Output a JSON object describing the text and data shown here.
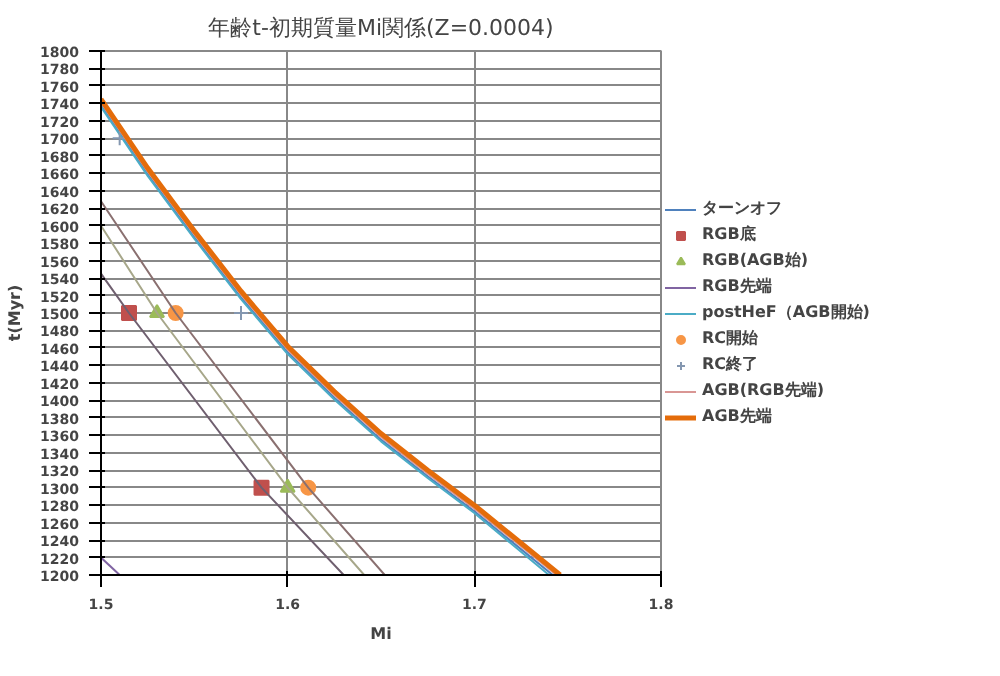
{
  "chart_data": {
    "type": "line",
    "title": "年齢t-初期質量Mi関係(Z=0.0004)",
    "xlabel": "Mi",
    "ylabel": "t(Myr)",
    "xlim": [
      1.5,
      1.8
    ],
    "xticks": [
      1.5,
      1.6,
      1.7,
      1.8
    ],
    "ylim": [
      1200,
      1800
    ],
    "yticks": [
      1200,
      1220,
      1240,
      1260,
      1280,
      1300,
      1320,
      1340,
      1360,
      1380,
      1400,
      1420,
      1440,
      1460,
      1480,
      1500,
      1520,
      1540,
      1560,
      1580,
      1600,
      1620,
      1640,
      1660,
      1680,
      1700,
      1720,
      1740,
      1760,
      1780,
      1800
    ],
    "grid": true,
    "legend": "right",
    "series": [
      {
        "name": "ターンオフ",
        "color": "#4f81bd",
        "x": [
          1.5,
          1.525,
          1.55,
          1.575,
          1.6,
          1.625,
          1.65,
          1.675,
          1.7,
          1.742
        ],
        "values": [
          1738,
          1659,
          1587,
          1518,
          1455,
          1403,
          1355,
          1313,
          1273,
          1200
        ]
      },
      {
        "name": "RGB底",
        "type": "scatter",
        "marker": "square",
        "color": "#c0504d",
        "x": [
          1.515,
          1.586
        ],
        "values": [
          1500,
          1300
        ]
      },
      {
        "name": "RGB(AGB始)",
        "type": "scatter",
        "marker": "triangle",
        "color": "#9bbb59",
        "x": [
          1.53,
          1.6
        ],
        "values": [
          1500,
          1300
        ]
      },
      {
        "name": "RGB先端",
        "color": "#8064a2",
        "x": [
          1.5,
          1.51
        ],
        "values": [
          1220,
          1200
        ]
      },
      {
        "name": "postHeF（AGB開始)",
        "color": "#4bacc6",
        "x": [
          1.5,
          1.525,
          1.55,
          1.575,
          1.6,
          1.625,
          1.65,
          1.675,
          1.7,
          1.74
        ],
        "values": [
          1736,
          1657,
          1585,
          1516,
          1453,
          1401,
          1353,
          1311,
          1271,
          1200
        ]
      },
      {
        "name": "RC開始",
        "type": "scatter",
        "marker": "circle",
        "color": "#f79646",
        "x": [
          1.54,
          1.611
        ],
        "values": [
          1500,
          1300
        ]
      },
      {
        "name": "RC終了",
        "type": "scatter",
        "marker": "cross",
        "color": "#8497b0",
        "x": [
          1.51,
          1.575
        ],
        "values": [
          1700,
          1500
        ]
      },
      {
        "name": "AGB(RGB先端)",
        "color": "#d99694",
        "x": [
          1.5,
          1.525,
          1.55,
          1.575,
          1.6,
          1.625,
          1.65,
          1.675,
          1.7,
          1.744
        ],
        "values": [
          1741,
          1662,
          1590,
          1521,
          1458,
          1406,
          1358,
          1316,
          1276,
          1200
        ]
      },
      {
        "name": "AGB先端",
        "color": "#e46c0a",
        "x": [
          1.5,
          1.525,
          1.55,
          1.575,
          1.6,
          1.625,
          1.65,
          1.675,
          1.7,
          1.746
        ],
        "values": [
          1745,
          1666,
          1594,
          1525,
          1462,
          1410,
          1362,
          1320,
          1280,
          1200
        ]
      },
      {
        "color": "#6f5f6f",
        "x": [
          1.5,
          1.515,
          1.586,
          1.63
        ],
        "values": [
          1545,
          1500,
          1300,
          1200
        ]
      },
      {
        "color": "#a7a78a",
        "x": [
          1.5,
          1.53,
          1.6,
          1.641
        ],
        "values": [
          1600,
          1500,
          1300,
          1200
        ]
      },
      {
        "color": "#8a7070",
        "x": [
          1.5,
          1.54,
          1.611,
          1.652
        ],
        "values": [
          1628,
          1500,
          1300,
          1200
        ]
      }
    ]
  }
}
